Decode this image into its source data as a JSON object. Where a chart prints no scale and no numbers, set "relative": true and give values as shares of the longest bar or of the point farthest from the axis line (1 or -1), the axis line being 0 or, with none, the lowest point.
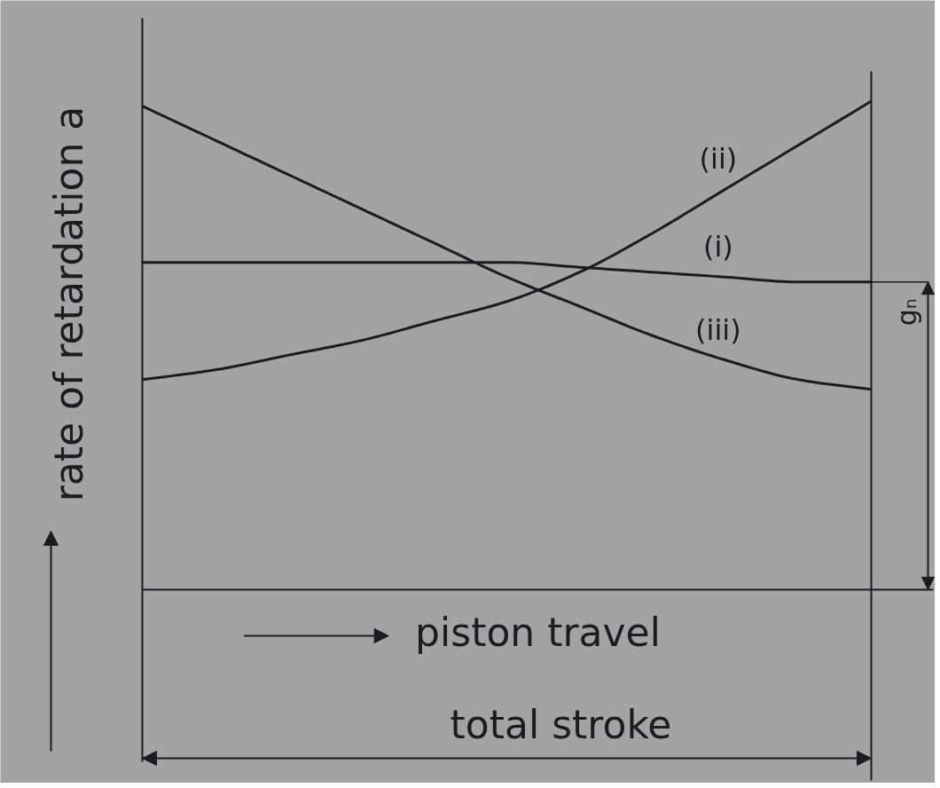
{
  "chart_data": {
    "type": "line",
    "relative": true,
    "xlabel": "piston travel",
    "ylabel": "rate of retardation a",
    "line_style": "solid",
    "categories": [
      null,
      null,
      null,
      null,
      null,
      null,
      null,
      null,
      null,
      null,
      null
    ],
    "series": [
      {
        "name": "(i)",
        "color": "#1b1b22",
        "values": [
          0.67,
          0.67,
          0.67,
          0.67,
          0.67,
          0.67,
          0.66,
          0.65,
          0.64,
          0.63,
          0.63
        ]
      },
      {
        "name": "(ii)",
        "color": "#1b1b22",
        "values": [
          0.43,
          0.45,
          0.48,
          0.51,
          0.55,
          0.59,
          0.65,
          0.73,
          0.82,
          0.91,
          1.0
        ]
      },
      {
        "name": "(iii)",
        "color": "#1b1b22",
        "values": [
          0.99,
          0.92,
          0.85,
          0.78,
          0.71,
          0.64,
          0.58,
          0.52,
          0.47,
          0.43,
          0.41
        ]
      }
    ],
    "ref_lines": [
      {
        "axis": "y",
        "value": 0.63,
        "label": "gₙ"
      }
    ],
    "annotations": [
      "total stroke"
    ]
  }
}
